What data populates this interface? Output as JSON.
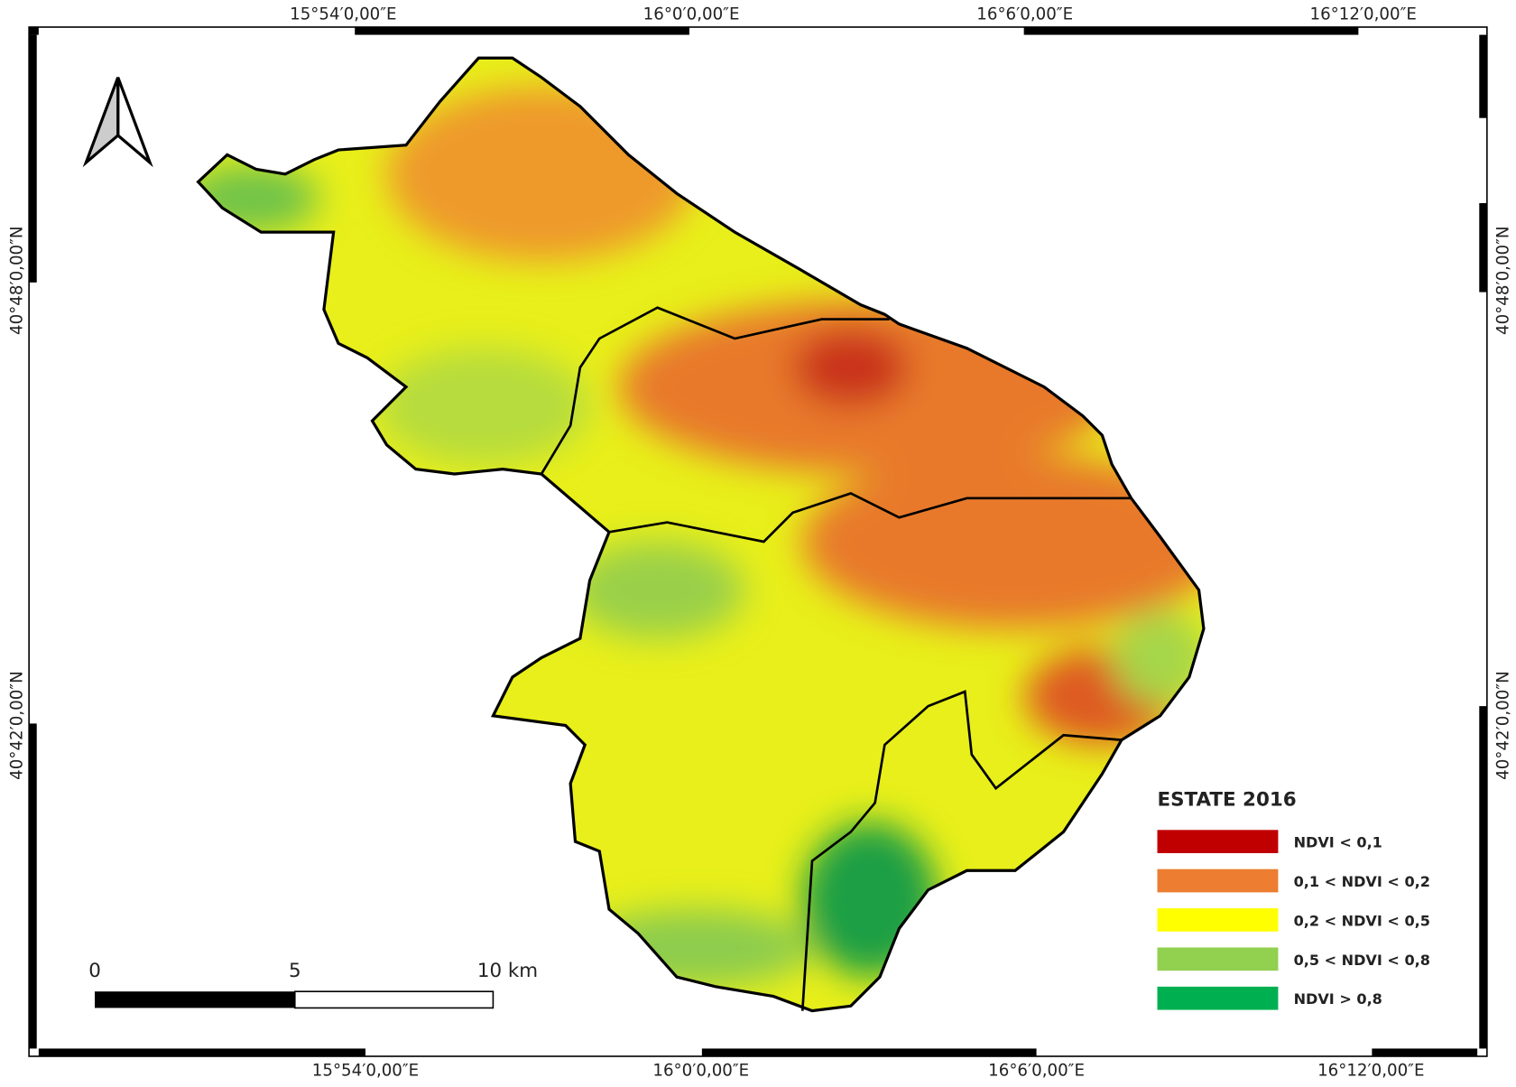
{
  "map": {
    "top_labels": [
      "15°54′0,00″E",
      "16°0′0,00″E",
      "16°6′0,00″E",
      "16°12′0,00″E"
    ],
    "bottom_labels": [
      "15°54′0,00″E",
      "16°0′0,00″E",
      "16°6′0,00″E",
      "16°12′0,00″E"
    ],
    "left_labels": [
      "40°48′0,00″N",
      "40°42′0,00″N"
    ],
    "right_labels": [
      "40°48′0,00″N",
      "40°42′0,00″N"
    ],
    "legend": {
      "title": "ESTATE 2016",
      "items": [
        {
          "label": "NDVI < 0,1",
          "color": "#c00000"
        },
        {
          "label": "0,1 < NDVI < 0,2",
          "color": "#ed7d31"
        },
        {
          "label": "0,2 < NDVI < 0,5",
          "color": "#ffff00"
        },
        {
          "label": "0,5 < NDVI < 0,8",
          "color": "#92d050"
        },
        {
          "label": "NDVI > 0,8",
          "color": "#00b050"
        }
      ]
    },
    "scale_bar": {
      "labels": [
        "0",
        "5",
        "10 km"
      ]
    }
  }
}
